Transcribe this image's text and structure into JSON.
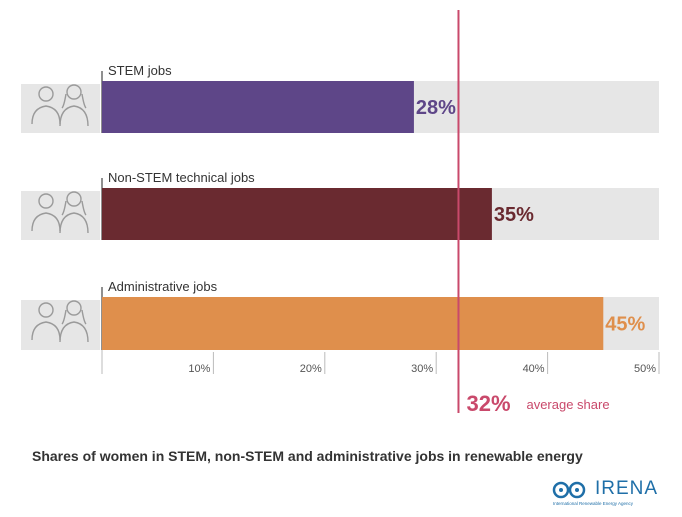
{
  "chart_data": {
    "type": "bar",
    "orientation": "horizontal",
    "categories": [
      "STEM jobs",
      "Non-STEM technical jobs",
      "Administrative jobs"
    ],
    "values": [
      28,
      35,
      45
    ],
    "value_labels": [
      "28%",
      "35%",
      "45%"
    ],
    "colors": [
      "#5e4688",
      "#6a2a30",
      "#df8f4c"
    ],
    "background_color": "#e6e6e6",
    "xlim": [
      0,
      50
    ],
    "ticks": [
      10,
      20,
      30,
      40,
      50
    ],
    "tick_labels": [
      "10%",
      "20%",
      "30%",
      "40%",
      "50%"
    ],
    "reference_line": {
      "value": 32,
      "label_value": "32%",
      "label_text": "average share",
      "color": "#c9496b"
    },
    "title": "Shares of women in STEM, non-STEM and administrative jobs in renewable energy",
    "icons": [
      "male-female-engineers-icon",
      "male-female-technicians-icon",
      "male-female-office-workers-icon"
    ]
  },
  "logo": {
    "name": "IRENA",
    "subtitle": "International Renewable Energy Agency"
  }
}
